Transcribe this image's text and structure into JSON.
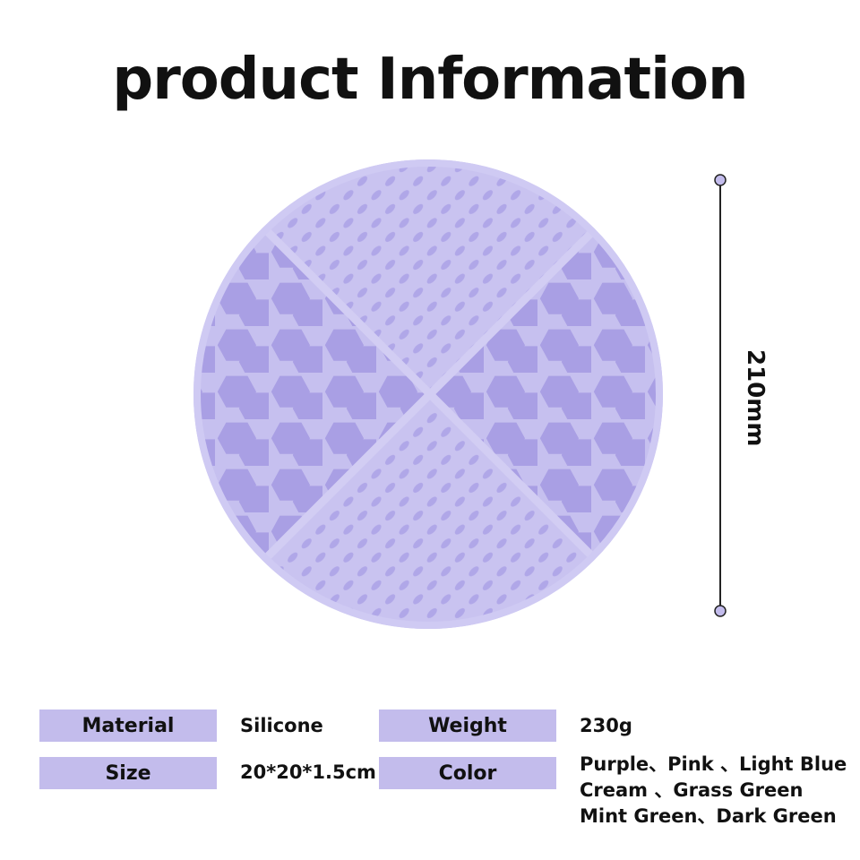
{
  "title": "product Information",
  "dimension": {
    "label": "210mm"
  },
  "product_color": "#c6c0ef",
  "label_bg_color": "#c3bcec",
  "specs": [
    {
      "label": "Material",
      "value": "Silicone"
    },
    {
      "label": "Weight",
      "value": "230g"
    },
    {
      "label": "Size",
      "value": "20*20*1.5cm"
    },
    {
      "label": "Color",
      "value_lines": [
        "Purple、Pink 、Light Blue",
        "Cream 、Grass Green",
        "Mint Green、Dark Green"
      ]
    }
  ]
}
